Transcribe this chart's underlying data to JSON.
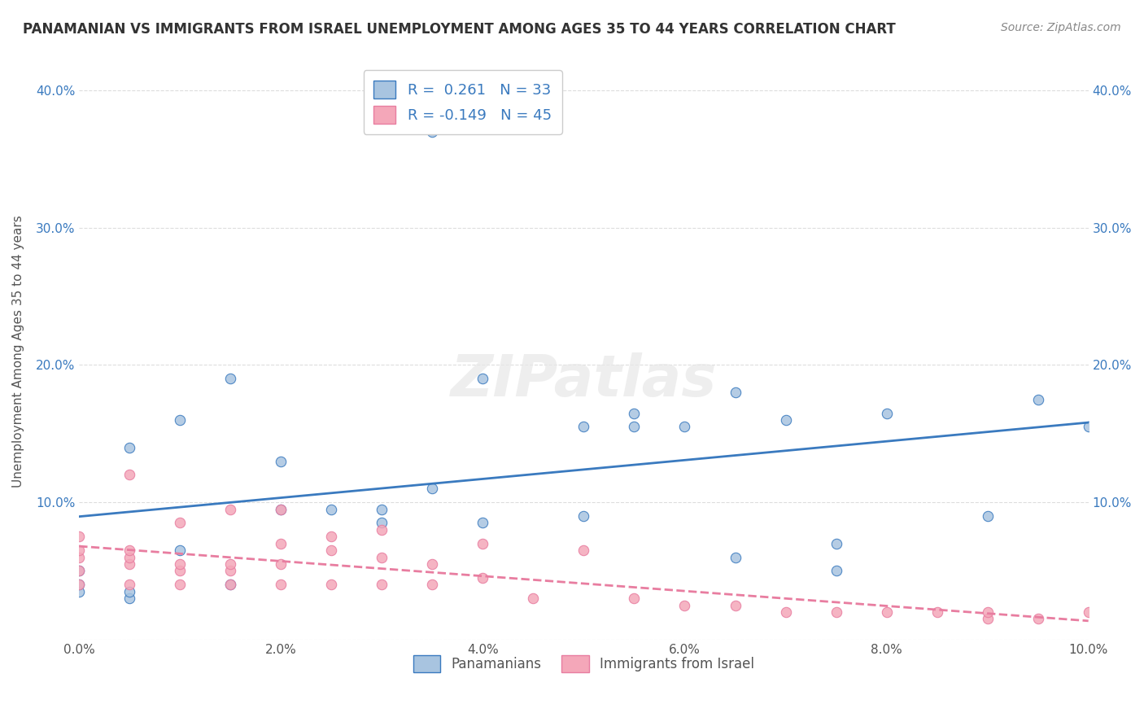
{
  "title": "PANAMANIAN VS IMMIGRANTS FROM ISRAEL UNEMPLOYMENT AMONG AGES 35 TO 44 YEARS CORRELATION CHART",
  "source": "Source: ZipAtlas.com",
  "xlabel": "",
  "ylabel": "Unemployment Among Ages 35 to 44 years",
  "xlim": [
    0.0,
    0.1
  ],
  "ylim": [
    0.0,
    0.42
  ],
  "xticks": [
    0.0,
    0.02,
    0.04,
    0.06,
    0.08,
    0.1
  ],
  "xtick_labels": [
    "0.0%",
    "2.0%",
    "4.0%",
    "6.0%",
    "8.0%",
    "10.0%"
  ],
  "yticks": [
    0.0,
    0.1,
    0.2,
    0.3,
    0.4
  ],
  "ytick_labels": [
    "",
    "10.0%",
    "20.0%",
    "30.0%",
    "40.0%"
  ],
  "blue_R": 0.261,
  "blue_N": 33,
  "pink_R": -0.149,
  "pink_N": 45,
  "blue_color": "#a8c4e0",
  "pink_color": "#f4a7b9",
  "blue_line_color": "#3a7abf",
  "pink_line_color": "#e87da0",
  "legend_text_color": "#3a7abf",
  "watermark": "ZIPatlas",
  "background_color": "#ffffff",
  "blue_scatter_x": [
    0.0,
    0.0,
    0.0,
    0.005,
    0.005,
    0.005,
    0.01,
    0.01,
    0.015,
    0.015,
    0.02,
    0.02,
    0.025,
    0.03,
    0.03,
    0.035,
    0.035,
    0.04,
    0.04,
    0.05,
    0.05,
    0.055,
    0.055,
    0.06,
    0.065,
    0.065,
    0.07,
    0.075,
    0.075,
    0.08,
    0.09,
    0.095,
    0.1
  ],
  "blue_scatter_y": [
    0.035,
    0.04,
    0.05,
    0.03,
    0.035,
    0.14,
    0.065,
    0.16,
    0.04,
    0.19,
    0.095,
    0.13,
    0.095,
    0.085,
    0.095,
    0.11,
    0.37,
    0.085,
    0.19,
    0.09,
    0.155,
    0.155,
    0.165,
    0.155,
    0.06,
    0.18,
    0.16,
    0.05,
    0.07,
    0.165,
    0.09,
    0.175,
    0.155
  ],
  "pink_scatter_x": [
    0.0,
    0.0,
    0.0,
    0.0,
    0.0,
    0.005,
    0.005,
    0.005,
    0.005,
    0.005,
    0.01,
    0.01,
    0.01,
    0.01,
    0.015,
    0.015,
    0.015,
    0.015,
    0.02,
    0.02,
    0.02,
    0.02,
    0.025,
    0.025,
    0.025,
    0.03,
    0.03,
    0.03,
    0.035,
    0.035,
    0.04,
    0.04,
    0.045,
    0.05,
    0.055,
    0.06,
    0.065,
    0.07,
    0.075,
    0.08,
    0.085,
    0.09,
    0.09,
    0.095,
    0.1
  ],
  "pink_scatter_y": [
    0.04,
    0.05,
    0.06,
    0.065,
    0.075,
    0.04,
    0.055,
    0.06,
    0.065,
    0.12,
    0.04,
    0.05,
    0.055,
    0.085,
    0.04,
    0.05,
    0.055,
    0.095,
    0.04,
    0.055,
    0.07,
    0.095,
    0.04,
    0.065,
    0.075,
    0.04,
    0.06,
    0.08,
    0.04,
    0.055,
    0.045,
    0.07,
    0.03,
    0.065,
    0.03,
    0.025,
    0.025,
    0.02,
    0.02,
    0.02,
    0.02,
    0.015,
    0.02,
    0.015,
    0.02
  ]
}
